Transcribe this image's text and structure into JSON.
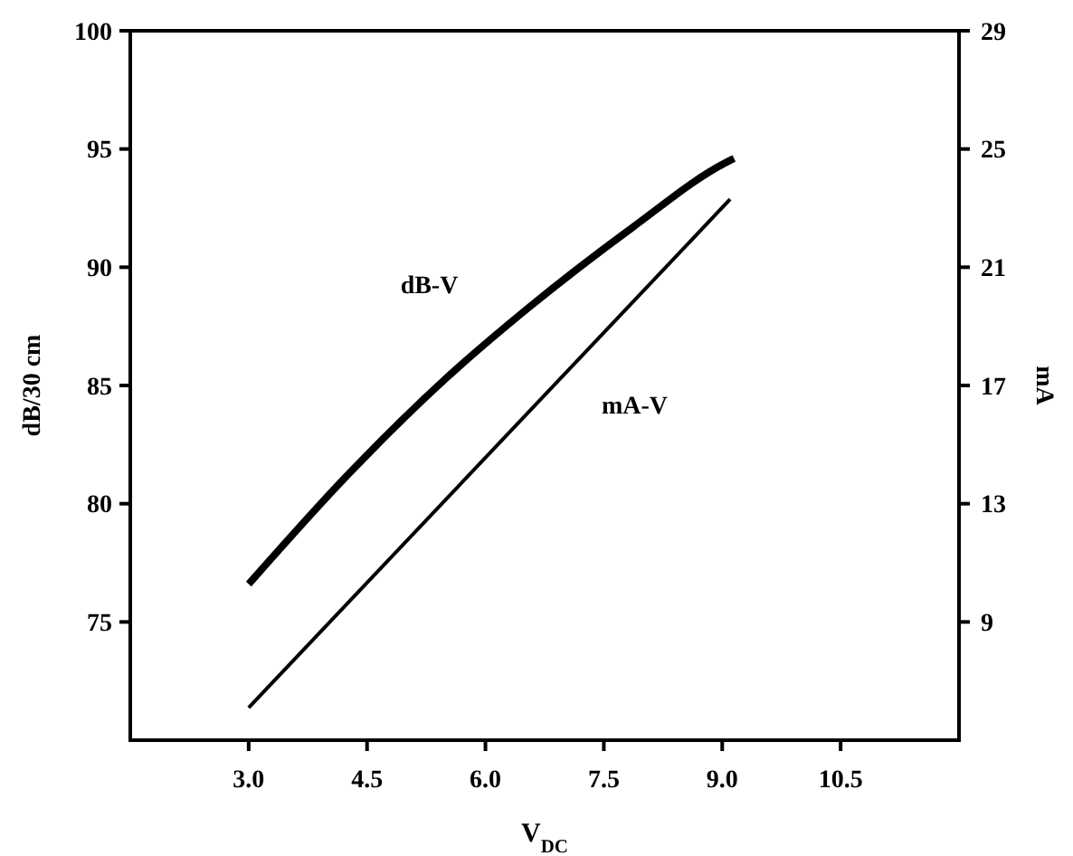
{
  "chart_data": {
    "type": "line",
    "xlabel": "V$_{DC}$",
    "ylabel": "dB/30 cm",
    "y2label": "mA",
    "xlim": [
      1.5,
      12
    ],
    "xticks": [
      {
        "value": 3,
        "label": "3.0"
      },
      {
        "value": 4.5,
        "label": "4.5"
      },
      {
        "value": 6,
        "label": "6.0"
      },
      {
        "value": 7.5,
        "label": "7.5"
      },
      {
        "value": 9,
        "label": "9.0"
      },
      {
        "value": 10.5,
        "label": "10.5"
      }
    ],
    "ylim": [
      70,
      100
    ],
    "yticks": [
      75,
      80,
      85,
      90,
      95,
      100
    ],
    "y2lim": [
      5,
      29
    ],
    "y2ticks": [
      9,
      13,
      17,
      21,
      25,
      29
    ],
    "grid": false,
    "marker": "none",
    "line_style": "solid",
    "series": [
      {
        "name": "dB-V",
        "color": "#000000",
        "x": [
          3.0,
          4.25,
          5.5,
          6.55,
          7.87,
          9.03,
          9.15
        ],
        "values": [
          76.6,
          81.2,
          85.3,
          88.3,
          91.7,
          94.4,
          94.6
        ]
      },
      {
        "name": "mA-V",
        "color": "#000000",
        "axis": "y2",
        "x": [
          3.0,
          9.1
        ],
        "values": [
          6.1,
          23.3
        ]
      }
    ]
  }
}
